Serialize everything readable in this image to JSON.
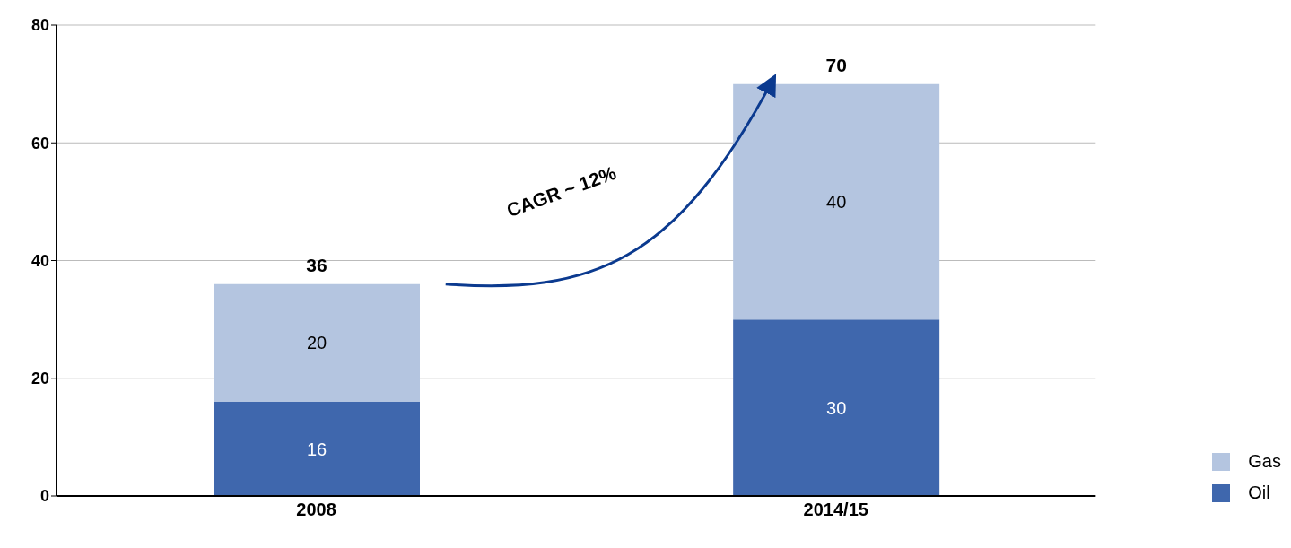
{
  "chart_data": {
    "type": "bar",
    "stacked": true,
    "categories": [
      "2008",
      "2014/15"
    ],
    "series": [
      {
        "name": "Oil",
        "color": "#3f67ad",
        "values": [
          16,
          30
        ]
      },
      {
        "name": "Gas",
        "color": "#b4c5e0",
        "values": [
          20,
          40
        ]
      }
    ],
    "totals": [
      "36",
      "70"
    ],
    "data_labels": true,
    "annotations": [
      "CAGR ~ 12%"
    ],
    "ylim": [
      0,
      80
    ],
    "yticks": [
      0,
      20,
      40,
      60,
      80
    ],
    "grid": "y",
    "legend": "bottom right"
  }
}
